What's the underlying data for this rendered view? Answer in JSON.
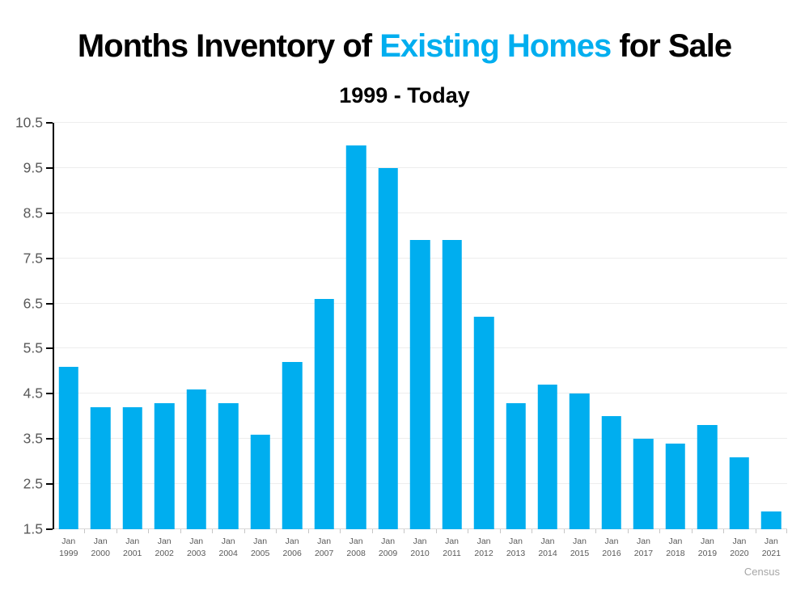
{
  "header": {
    "title_prefix": "Months Inventory of ",
    "title_highlight": "Existing Homes",
    "title_suffix": " for Sale",
    "subtitle": "1999 - Today"
  },
  "footer": {
    "source_credit": "Census"
  },
  "colors": {
    "bar": "#00AEEF",
    "title_highlight": "#00AEEF",
    "axis_text": "#595959",
    "gridline": "#EDEDED",
    "baseline": "#D9D9D9",
    "axis_line": "#000000",
    "tick": "#C6C6C6",
    "credit": "#A6A6A6"
  },
  "chart_data": {
    "type": "bar",
    "title": "Months Inventory of Existing Homes for Sale",
    "subtitle": "1999 - Today",
    "categories": [
      "Jan 1999",
      "Jan 2000",
      "Jan 2001",
      "Jan 2002",
      "Jan 2003",
      "Jan 2004",
      "Jan 2005",
      "Jan 2006",
      "Jan 2007",
      "Jan 2008",
      "Jan 2009",
      "Jan 2010",
      "Jan 2011",
      "Jan 2012",
      "Jan 2013",
      "Jan 2014",
      "Jan 2015",
      "Jan 2016",
      "Jan 2017",
      "Jan 2018",
      "Jan 2019",
      "Jan 2020",
      "Jan 2021"
    ],
    "values": [
      5.1,
      4.2,
      4.2,
      4.3,
      4.6,
      4.3,
      3.6,
      5.2,
      6.6,
      10.0,
      9.5,
      7.9,
      7.9,
      6.2,
      4.3,
      4.7,
      4.5,
      4.0,
      3.5,
      3.4,
      3.8,
      3.1,
      1.9
    ],
    "xlabel": "",
    "ylabel": "",
    "ylim": [
      1.5,
      10.5
    ],
    "yticks": [
      1.5,
      2.5,
      3.5,
      4.5,
      5.5,
      6.5,
      7.5,
      8.5,
      9.5,
      10.5
    ],
    "grid": true,
    "legend": false,
    "bar_color": "#00AEEF",
    "source": "Census"
  }
}
